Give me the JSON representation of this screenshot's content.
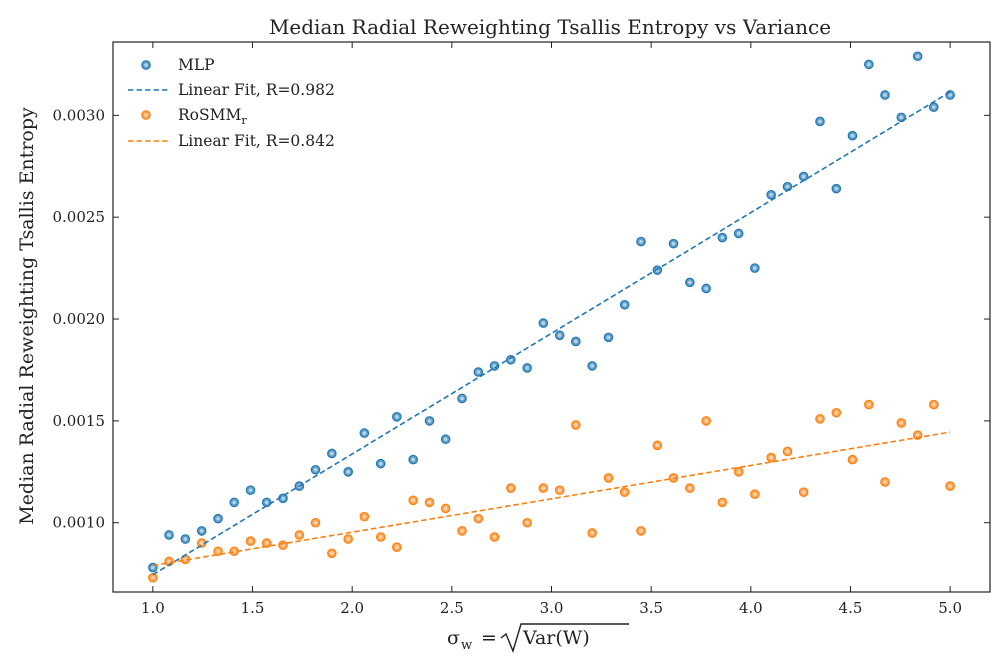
{
  "chart_data": {
    "type": "scatter",
    "title": "Median Radial Reweighting Tsallis Entropy vs Variance",
    "xlabel": "σw = √Var(W)",
    "xlabel_sigma": "σ",
    "xlabel_sigma_sub": "w",
    "xlabel_eq": "=",
    "xlabel_root_arg": "Var(W)",
    "ylabel": "Median Radial Reweighting Tsallis Entropy",
    "xlim": [
      0.8,
      5.2
    ],
    "ylim": [
      0.00066,
      0.00336
    ],
    "x_ticks": [
      1.0,
      1.5,
      2.0,
      2.5,
      3.0,
      3.5,
      4.0,
      4.5,
      5.0
    ],
    "x_tick_labels": [
      "1.0",
      "1.5",
      "2.0",
      "2.5",
      "3.0",
      "3.5",
      "4.0",
      "4.5",
      "5.0"
    ],
    "y_ticks": [
      0.001,
      0.0015,
      0.002,
      0.0025,
      0.003
    ],
    "y_tick_labels": [
      "0.0010",
      "0.0015",
      "0.0020",
      "0.0025",
      "0.0030"
    ],
    "legend_position": "top-left",
    "x": [
      1.0,
      1.081,
      1.163,
      1.245,
      1.327,
      1.408,
      1.49,
      1.571,
      1.653,
      1.735,
      1.816,
      1.898,
      1.98,
      2.061,
      2.143,
      2.224,
      2.306,
      2.388,
      2.469,
      2.551,
      2.633,
      2.714,
      2.796,
      2.878,
      2.959,
      3.041,
      3.122,
      3.204,
      3.286,
      3.367,
      3.449,
      3.531,
      3.612,
      3.694,
      3.776,
      3.857,
      3.939,
      4.02,
      4.102,
      4.184,
      4.265,
      4.347,
      4.429,
      4.51,
      4.592,
      4.673,
      4.755,
      4.837,
      4.918,
      5.0
    ],
    "series": [
      {
        "name": "MLP",
        "color": "#1f77b4",
        "values": [
          0.00078,
          0.00094,
          0.00092,
          0.00096,
          0.00102,
          0.0011,
          0.00116,
          0.0011,
          0.00112,
          0.00118,
          0.00126,
          0.00134,
          0.00125,
          0.00144,
          0.00129,
          0.00152,
          0.00131,
          0.0015,
          0.00141,
          0.00161,
          0.00174,
          0.00177,
          0.0018,
          0.00176,
          0.00198,
          0.00192,
          0.00189,
          0.00177,
          0.00191,
          0.00207,
          0.00238,
          0.00224,
          0.00237,
          0.00218,
          0.00215,
          0.0024,
          0.00242,
          0.00225,
          0.00261,
          0.00265,
          0.0027,
          0.00297,
          0.00264,
          0.0029,
          0.00325,
          0.0031,
          0.00299,
          0.00329,
          0.00304,
          0.0031
        ],
        "fit_label": "Linear Fit, R=0.982",
        "fit": [
          [
            1.0,
            0.000745
          ],
          [
            5.0,
            0.003115
          ]
        ]
      },
      {
        "name": "RoSMMr",
        "name_main": "RoSMM",
        "name_sub": "r",
        "color": "#ff7f0e",
        "values": [
          0.00073,
          0.00081,
          0.00082,
          0.0009,
          0.00086,
          0.00086,
          0.00091,
          0.0009,
          0.00089,
          0.00094,
          0.001,
          0.00085,
          0.00092,
          0.00103,
          0.00093,
          0.00088,
          0.00111,
          0.0011,
          0.00107,
          0.00096,
          0.00102,
          0.00093,
          0.00117,
          0.001,
          0.00117,
          0.00116,
          0.00148,
          0.00095,
          0.00122,
          0.00115,
          0.00096,
          0.00138,
          0.00122,
          0.00117,
          0.0015,
          0.0011,
          0.00125,
          0.00114,
          0.00132,
          0.00135,
          0.00115,
          0.00151,
          0.00154,
          0.00131,
          0.00158,
          0.0012,
          0.00149,
          0.00143,
          0.00158,
          0.00118
        ],
        "fit_label": "Linear Fit, R=0.842",
        "fit": [
          [
            1.0,
            0.00079
          ],
          [
            5.0,
            0.001445
          ]
        ]
      }
    ]
  }
}
